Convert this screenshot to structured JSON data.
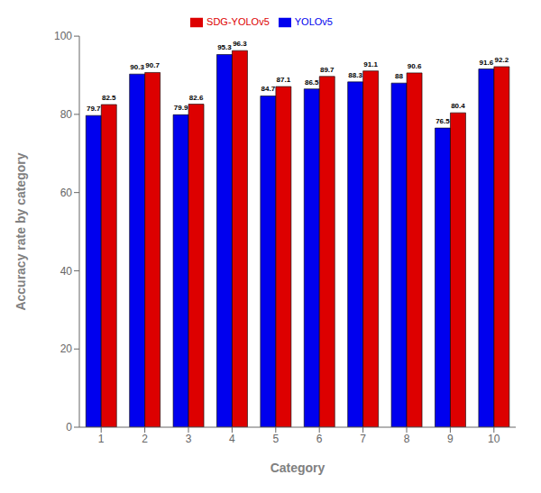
{
  "chart_data": {
    "type": "bar",
    "categories": [
      "1",
      "2",
      "3",
      "4",
      "5",
      "6",
      "7",
      "8",
      "9",
      "10"
    ],
    "series": [
      {
        "name": "YOLOv5",
        "color": "#0000EE",
        "values": [
          79.7,
          90.3,
          79.9,
          95.3,
          84.7,
          86.5,
          88.3,
          88.0,
          76.5,
          91.6
        ]
      },
      {
        "name": "SDG-YOLOv5",
        "color": "#DD0000",
        "values": [
          82.5,
          90.7,
          82.6,
          96.3,
          87.1,
          89.7,
          91.1,
          90.6,
          80.4,
          92.2
        ]
      }
    ],
    "xlabel": "Category",
    "ylabel": "Accuracy rate by category",
    "ylim": [
      0,
      100
    ],
    "yticks": [
      0,
      20,
      40,
      60,
      80,
      100
    ],
    "grid": false,
    "legend": "top",
    "data_labels": true
  }
}
